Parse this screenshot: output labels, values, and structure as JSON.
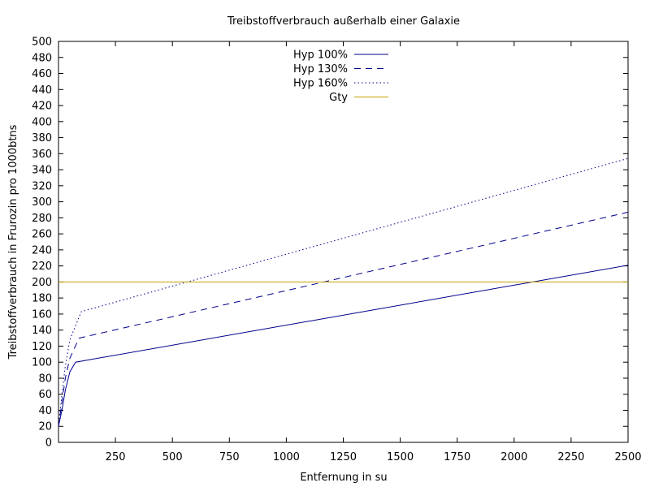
{
  "chart_data": {
    "type": "line",
    "title": "Treibstoffverbrauch außerhalb einer Galaxie",
    "xlabel": "Entfernung in su",
    "ylabel": "Treibstoffverbrauch in Frurozin pro 1000btns",
    "xlim": [
      0,
      2500
    ],
    "ylim": [
      0,
      500
    ],
    "x_ticks": [
      250,
      500,
      750,
      1000,
      1250,
      1500,
      1750,
      2000,
      2250,
      2500
    ],
    "y_ticks": [
      0,
      20,
      40,
      60,
      80,
      100,
      120,
      140,
      160,
      180,
      200,
      220,
      240,
      260,
      280,
      300,
      320,
      340,
      360,
      380,
      400,
      420,
      440,
      460,
      480,
      500
    ],
    "grid": false,
    "legend_position": "top-center",
    "series": [
      {
        "name": "Hyp 100%",
        "color": "#00008b",
        "dash": "solid",
        "points": [
          [
            0,
            20
          ],
          [
            15,
            40
          ],
          [
            30,
            65
          ],
          [
            50,
            88
          ],
          [
            75,
            100
          ],
          [
            2500,
            221
          ]
        ]
      },
      {
        "name": "Hyp 130%",
        "color": "#00008b",
        "dash": "dashed",
        "points": [
          [
            0,
            20
          ],
          [
            15,
            50
          ],
          [
            30,
            80
          ],
          [
            50,
            105
          ],
          [
            90,
            130
          ],
          [
            2500,
            287
          ]
        ]
      },
      {
        "name": "Hyp 160%",
        "color": "#00008b",
        "dash": "dotted",
        "points": [
          [
            0,
            20
          ],
          [
            15,
            60
          ],
          [
            30,
            95
          ],
          [
            50,
            128
          ],
          [
            100,
            163
          ],
          [
            2500,
            354
          ]
        ]
      },
      {
        "name": "Gty",
        "color": "#c8a000",
        "dash": "solid",
        "points": [
          [
            0,
            200
          ],
          [
            2500,
            200
          ]
        ]
      }
    ]
  }
}
